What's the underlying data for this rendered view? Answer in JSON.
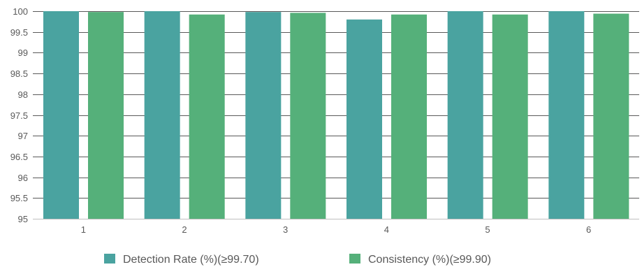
{
  "chart_data": {
    "type": "bar",
    "title": "",
    "xlabel": "",
    "ylabel": "",
    "categories": [
      "1",
      "2",
      "3",
      "4",
      "5",
      "6"
    ],
    "series": [
      {
        "name": "Detection Rate (%)(≥99.70)",
        "color": "#4aa3a0",
        "values": [
          100,
          100,
          99.98,
          99.8,
          100,
          100
        ]
      },
      {
        "name": "Consistency (%)(≥99.90)",
        "color": "#55b07a",
        "values": [
          99.98,
          99.92,
          99.96,
          99.92,
          99.92,
          99.94
        ]
      }
    ],
    "ylim": [
      95,
      100
    ],
    "yticks": [
      95,
      95.5,
      96,
      96.5,
      97,
      97.5,
      98,
      98.5,
      99,
      99.5,
      100
    ],
    "ytick_labels": [
      "95",
      "95.5",
      "96",
      "96.5",
      "97",
      "97.5",
      "98",
      "98.5",
      "99",
      "99.5",
      "100"
    ],
    "grid": true,
    "legend_position": "bottom-center",
    "colors": {
      "grid": "#595959",
      "tick_text": "#595959",
      "axis": "#bfbfbf"
    }
  }
}
